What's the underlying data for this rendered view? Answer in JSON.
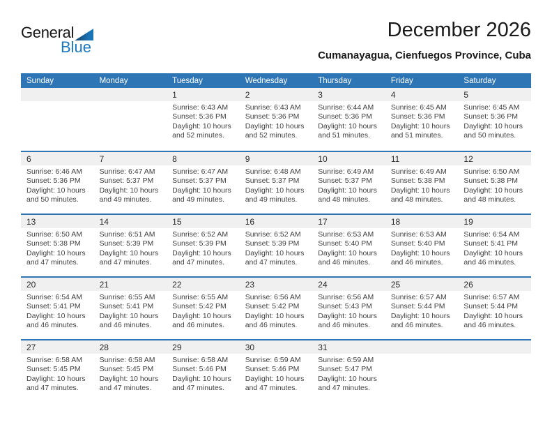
{
  "logo": {
    "general": "General",
    "blue": "Blue"
  },
  "header": {
    "title": "December 2026",
    "subtitle": "Cumanayagua, Cienfuegos Province, Cuba"
  },
  "colors": {
    "accent_blue": "#2E75B6",
    "logo_blue": "#1879C0",
    "day_band_gray": "#F0F0F0",
    "text_dark": "#404040"
  },
  "weekdays": [
    "Sunday",
    "Monday",
    "Tuesday",
    "Wednesday",
    "Thursday",
    "Friday",
    "Saturday"
  ],
  "weeks": [
    [
      {
        "day": "",
        "lines": []
      },
      {
        "day": "",
        "lines": []
      },
      {
        "day": "1",
        "lines": [
          "Sunrise: 6:43 AM",
          "Sunset: 5:36 PM",
          "Daylight: 10 hours",
          "and 52 minutes."
        ]
      },
      {
        "day": "2",
        "lines": [
          "Sunrise: 6:43 AM",
          "Sunset: 5:36 PM",
          "Daylight: 10 hours",
          "and 52 minutes."
        ]
      },
      {
        "day": "3",
        "lines": [
          "Sunrise: 6:44 AM",
          "Sunset: 5:36 PM",
          "Daylight: 10 hours",
          "and 51 minutes."
        ]
      },
      {
        "day": "4",
        "lines": [
          "Sunrise: 6:45 AM",
          "Sunset: 5:36 PM",
          "Daylight: 10 hours",
          "and 51 minutes."
        ]
      },
      {
        "day": "5",
        "lines": [
          "Sunrise: 6:45 AM",
          "Sunset: 5:36 PM",
          "Daylight: 10 hours",
          "and 50 minutes."
        ]
      }
    ],
    [
      {
        "day": "6",
        "lines": [
          "Sunrise: 6:46 AM",
          "Sunset: 5:36 PM",
          "Daylight: 10 hours",
          "and 50 minutes."
        ]
      },
      {
        "day": "7",
        "lines": [
          "Sunrise: 6:47 AM",
          "Sunset: 5:37 PM",
          "Daylight: 10 hours",
          "and 49 minutes."
        ]
      },
      {
        "day": "8",
        "lines": [
          "Sunrise: 6:47 AM",
          "Sunset: 5:37 PM",
          "Daylight: 10 hours",
          "and 49 minutes."
        ]
      },
      {
        "day": "9",
        "lines": [
          "Sunrise: 6:48 AM",
          "Sunset: 5:37 PM",
          "Daylight: 10 hours",
          "and 49 minutes."
        ]
      },
      {
        "day": "10",
        "lines": [
          "Sunrise: 6:49 AM",
          "Sunset: 5:37 PM",
          "Daylight: 10 hours",
          "and 48 minutes."
        ]
      },
      {
        "day": "11",
        "lines": [
          "Sunrise: 6:49 AM",
          "Sunset: 5:38 PM",
          "Daylight: 10 hours",
          "and 48 minutes."
        ]
      },
      {
        "day": "12",
        "lines": [
          "Sunrise: 6:50 AM",
          "Sunset: 5:38 PM",
          "Daylight: 10 hours",
          "and 48 minutes."
        ]
      }
    ],
    [
      {
        "day": "13",
        "lines": [
          "Sunrise: 6:50 AM",
          "Sunset: 5:38 PM",
          "Daylight: 10 hours",
          "and 47 minutes."
        ]
      },
      {
        "day": "14",
        "lines": [
          "Sunrise: 6:51 AM",
          "Sunset: 5:39 PM",
          "Daylight: 10 hours",
          "and 47 minutes."
        ]
      },
      {
        "day": "15",
        "lines": [
          "Sunrise: 6:52 AM",
          "Sunset: 5:39 PM",
          "Daylight: 10 hours",
          "and 47 minutes."
        ]
      },
      {
        "day": "16",
        "lines": [
          "Sunrise: 6:52 AM",
          "Sunset: 5:39 PM",
          "Daylight: 10 hours",
          "and 47 minutes."
        ]
      },
      {
        "day": "17",
        "lines": [
          "Sunrise: 6:53 AM",
          "Sunset: 5:40 PM",
          "Daylight: 10 hours",
          "and 46 minutes."
        ]
      },
      {
        "day": "18",
        "lines": [
          "Sunrise: 6:53 AM",
          "Sunset: 5:40 PM",
          "Daylight: 10 hours",
          "and 46 minutes."
        ]
      },
      {
        "day": "19",
        "lines": [
          "Sunrise: 6:54 AM",
          "Sunset: 5:41 PM",
          "Daylight: 10 hours",
          "and 46 minutes."
        ]
      }
    ],
    [
      {
        "day": "20",
        "lines": [
          "Sunrise: 6:54 AM",
          "Sunset: 5:41 PM",
          "Daylight: 10 hours",
          "and 46 minutes."
        ]
      },
      {
        "day": "21",
        "lines": [
          "Sunrise: 6:55 AM",
          "Sunset: 5:41 PM",
          "Daylight: 10 hours",
          "and 46 minutes."
        ]
      },
      {
        "day": "22",
        "lines": [
          "Sunrise: 6:55 AM",
          "Sunset: 5:42 PM",
          "Daylight: 10 hours",
          "and 46 minutes."
        ]
      },
      {
        "day": "23",
        "lines": [
          "Sunrise: 6:56 AM",
          "Sunset: 5:42 PM",
          "Daylight: 10 hours",
          "and 46 minutes."
        ]
      },
      {
        "day": "24",
        "lines": [
          "Sunrise: 6:56 AM",
          "Sunset: 5:43 PM",
          "Daylight: 10 hours",
          "and 46 minutes."
        ]
      },
      {
        "day": "25",
        "lines": [
          "Sunrise: 6:57 AM",
          "Sunset: 5:44 PM",
          "Daylight: 10 hours",
          "and 46 minutes."
        ]
      },
      {
        "day": "26",
        "lines": [
          "Sunrise: 6:57 AM",
          "Sunset: 5:44 PM",
          "Daylight: 10 hours",
          "and 46 minutes."
        ]
      }
    ],
    [
      {
        "day": "27",
        "lines": [
          "Sunrise: 6:58 AM",
          "Sunset: 5:45 PM",
          "Daylight: 10 hours",
          "and 47 minutes."
        ]
      },
      {
        "day": "28",
        "lines": [
          "Sunrise: 6:58 AM",
          "Sunset: 5:45 PM",
          "Daylight: 10 hours",
          "and 47 minutes."
        ]
      },
      {
        "day": "29",
        "lines": [
          "Sunrise: 6:58 AM",
          "Sunset: 5:46 PM",
          "Daylight: 10 hours",
          "and 47 minutes."
        ]
      },
      {
        "day": "30",
        "lines": [
          "Sunrise: 6:59 AM",
          "Sunset: 5:46 PM",
          "Daylight: 10 hours",
          "and 47 minutes."
        ]
      },
      {
        "day": "31",
        "lines": [
          "Sunrise: 6:59 AM",
          "Sunset: 5:47 PM",
          "Daylight: 10 hours",
          "and 47 minutes."
        ]
      },
      {
        "day": "",
        "lines": []
      },
      {
        "day": "",
        "lines": []
      }
    ]
  ]
}
